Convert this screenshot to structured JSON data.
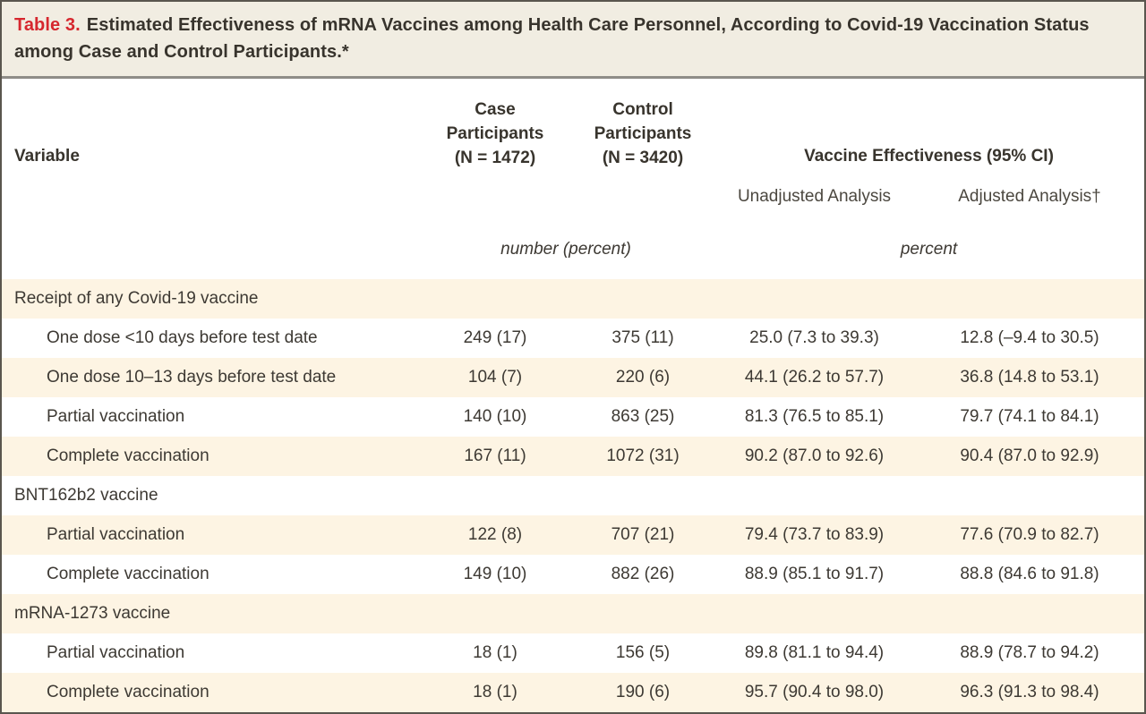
{
  "title": {
    "label": "Table 3.",
    "text": "Estimated Effectiveness of mRNA Vaccines among Health Care Personnel, According to Covid-19 Vaccination Status among Case and Control Participants.*"
  },
  "header": {
    "variable": "Variable",
    "case_participants": "Case\nParticipants\n(N = 1472)",
    "control_participants": "Control\nParticipants\n(N = 3420)",
    "effectiveness": "Vaccine Effectiveness (95% CI)",
    "unadjusted": "Unadjusted Analysis",
    "adjusted": "Adjusted Analysis†",
    "number_unit": "number (percent)",
    "percent_unit": "percent"
  },
  "rows": [
    {
      "type": "section",
      "label": "Receipt of any Covid-19 vaccine"
    },
    {
      "type": "data",
      "label": "One dose <10 days before test date",
      "case": "249 (17)",
      "control": "375 (11)",
      "unadjusted": "25.0 (7.3 to 39.3)",
      "adjusted": "12.8 (–9.4 to 30.5)"
    },
    {
      "type": "data",
      "label": "One dose 10–13 days before test date",
      "case": "104 (7)",
      "control": "220 (6)",
      "unadjusted": "44.1 (26.2 to 57.7)",
      "adjusted": "36.8 (14.8 to 53.1)"
    },
    {
      "type": "data",
      "label": "Partial vaccination",
      "case": "140 (10)",
      "control": "863 (25)",
      "unadjusted": "81.3 (76.5 to 85.1)",
      "adjusted": "79.7 (74.1 to 84.1)"
    },
    {
      "type": "data",
      "label": "Complete vaccination",
      "case": "167 (11)",
      "control": "1072 (31)",
      "unadjusted": "90.2 (87.0 to 92.6)",
      "adjusted": "90.4 (87.0 to 92.9)"
    },
    {
      "type": "section",
      "label": "BNT162b2 vaccine"
    },
    {
      "type": "data",
      "label": "Partial vaccination",
      "case": "122 (8)",
      "control": "707 (21)",
      "unadjusted": "79.4 (73.7 to 83.9)",
      "adjusted": "77.6 (70.9 to 82.7)"
    },
    {
      "type": "data",
      "label": "Complete vaccination",
      "case": "149 (10)",
      "control": "882 (26)",
      "unadjusted": "88.9 (85.1 to 91.7)",
      "adjusted": "88.8 (84.6 to 91.8)"
    },
    {
      "type": "section",
      "label": "mRNA-1273 vaccine"
    },
    {
      "type": "data",
      "label": "Partial vaccination",
      "case": "18 (1)",
      "control": "156 (5)",
      "unadjusted": "89.8 (81.1 to 94.4)",
      "adjusted": "88.9 (78.7 to 94.2)"
    },
    {
      "type": "data",
      "label": "Complete vaccination",
      "case": "18 (1)",
      "control": "190 (6)",
      "unadjusted": "95.7 (90.4 to 98.0)",
      "adjusted": "96.3 (91.3 to 98.4)"
    }
  ],
  "colors": {
    "accent_red": "#d6272e",
    "title_background": "#f1ede2",
    "shaded_row_background": "#fdf4e3",
    "text": "#3d3933",
    "outer_border": "#5a564e",
    "title_rule": "#8f8d88"
  }
}
